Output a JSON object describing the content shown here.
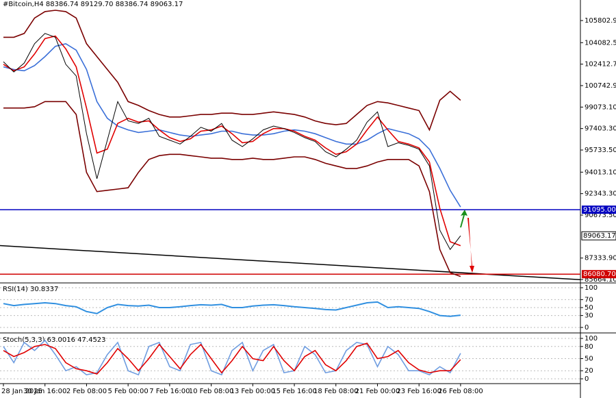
{
  "header": "#Bitcoin,H4  88386.74 89129.70 88386.74 89063.17",
  "chart_data": [
    {
      "type": "line",
      "categories": [
        "28 Jan 2025",
        null,
        null,
        null,
        "30 Jan 16:00",
        null,
        null,
        null,
        "2 Feb 08:00",
        null,
        null,
        null,
        "5 Feb 00:00",
        null,
        null,
        null,
        "7 Feb 16:00",
        null,
        null,
        null,
        "10 Feb 08:00",
        null,
        null,
        null,
        "13 Feb 00:00",
        null,
        null,
        null,
        "15 Feb 16:00",
        null,
        null,
        null,
        "18 Feb 08:00",
        null,
        null,
        null,
        "21 Feb 00:00",
        null,
        null,
        null,
        "23 Feb 16:00",
        null,
        null,
        null,
        "26 Feb 08:00"
      ],
      "series": [
        {
          "color": "#7a0000",
          "values": [
            104500,
            104500,
            104800,
            106000,
            106500,
            106600,
            106500,
            106000,
            104000,
            103000,
            102000,
            101000,
            99500,
            99200,
            98800,
            98500,
            98300,
            98300,
            98400,
            98500,
            98500,
            98600,
            98600,
            98500,
            98500,
            98600,
            98700,
            98600,
            98500,
            98300,
            98000,
            97800,
            97700,
            97800,
            98500,
            99200,
            99500,
            99400,
            99200,
            99000,
            98800,
            97300,
            99600,
            100300,
            99600
          ]
        },
        {
          "color": "#7a0000",
          "values": [
            99000,
            99000,
            99000,
            99100,
            99500,
            99500,
            99500,
            98500,
            94000,
            92500,
            92600,
            92700,
            92800,
            94000,
            95000,
            95300,
            95400,
            95400,
            95300,
            95200,
            95100,
            95100,
            95000,
            95000,
            95100,
            95000,
            95000,
            95100,
            95200,
            95200,
            95000,
            94700,
            94500,
            94300,
            94300,
            94500,
            94800,
            95000,
            95000,
            95000,
            94500,
            92500,
            88000,
            86200,
            85900
          ]
        },
        {
          "color": "#3a6fd8",
          "values": [
            102200,
            102000,
            101900,
            102300,
            103000,
            103800,
            104000,
            103500,
            102000,
            99500,
            98200,
            97600,
            97300,
            97100,
            97200,
            97300,
            97100,
            96900,
            96800,
            96900,
            97000,
            97200,
            97200,
            97000,
            96900,
            96900,
            97000,
            97200,
            97300,
            97200,
            97000,
            96700,
            96400,
            96200,
            96200,
            96500,
            97000,
            97400,
            97200,
            97000,
            96600,
            95800,
            94300,
            92600,
            91300
          ]
        },
        {
          "color": "#e00000",
          "values": [
            102400,
            101900,
            102200,
            103200,
            104400,
            104600,
            103600,
            102200,
            99000,
            95500,
            95800,
            97800,
            98200,
            97900,
            98000,
            97300,
            96700,
            96400,
            96600,
            97200,
            97300,
            97600,
            97000,
            96300,
            96400,
            97000,
            97400,
            97400,
            97200,
            96800,
            96500,
            95900,
            95400,
            95600,
            96200,
            97300,
            98300,
            97300,
            96400,
            96200,
            95900,
            94800,
            91200,
            88600,
            88300
          ]
        },
        {
          "color": "#000000",
          "values": [
            102600,
            101800,
            102500,
            104000,
            104800,
            104500,
            102400,
            101500,
            97000,
            93500,
            96500,
            99500,
            98000,
            97800,
            98200,
            96800,
            96500,
            96200,
            96800,
            97500,
            97200,
            97800,
            96500,
            96000,
            96600,
            97300,
            97600,
            97400,
            97100,
            96700,
            96400,
            95600,
            95200,
            95800,
            96500,
            97900,
            98700,
            96000,
            96300,
            96100,
            95800,
            94500,
            89500,
            88000,
            89063.17
          ]
        }
      ],
      "ylim": [
        85400,
        107400
      ],
      "yticks": [
        {
          "value": 105802.9,
          "label": "105802.90"
        },
        {
          "value": 104082.5,
          "label": "104082.50"
        },
        {
          "value": 102412.7,
          "label": "102412.70"
        },
        {
          "value": 100742.9,
          "label": "100742.90"
        },
        {
          "value": 99073.1,
          "label": "99073.10"
        },
        {
          "value": 97403.3,
          "label": "97403.30"
        },
        {
          "value": 95733.5,
          "label": "95733.50"
        },
        {
          "value": 94013.1,
          "label": "94013.10"
        },
        {
          "value": 92343.3,
          "label": "92343.30"
        },
        {
          "value": 90673.5,
          "label": "90673.50"
        },
        {
          "value": 87333.9,
          "label": "87333.90"
        },
        {
          "value": 85664.1,
          "label": "85664.10"
        }
      ],
      "levels": [
        {
          "value": 91095,
          "label": "91095.00",
          "color": "#0000c0"
        },
        {
          "value": 86080.7,
          "label": "86080.70",
          "color": "#d00000"
        }
      ],
      "last": {
        "value": 89063.17,
        "label": "89063.17"
      },
      "trendline": {
        "values": [
          88300,
          85650
        ],
        "color": "#000000"
      },
      "grid": false
    },
    {
      "type": "line",
      "title": "RSI(14) 30.8337",
      "color": "#2f8fe0",
      "values": [
        60,
        55,
        58,
        60,
        62,
        60,
        55,
        52,
        40,
        35,
        50,
        58,
        55,
        54,
        56,
        50,
        50,
        52,
        55,
        57,
        56,
        58,
        50,
        50,
        54,
        56,
        57,
        55,
        52,
        50,
        48,
        45,
        44,
        50,
        56,
        62,
        64,
        50,
        52,
        50,
        48,
        40,
        30,
        28,
        30.8337
      ],
      "ylim": [
        0,
        100
      ],
      "yticks": [
        0,
        30,
        50,
        70,
        100
      ],
      "grid": true
    },
    {
      "type": "line",
      "title": "Stoch(5,3,3) 63.0016 47.4523",
      "series": [
        {
          "color": "#6f9de0",
          "values": [
            80,
            40,
            90,
            70,
            95,
            60,
            20,
            30,
            10,
            15,
            60,
            90,
            20,
            10,
            80,
            90,
            30,
            20,
            85,
            90,
            20,
            10,
            70,
            90,
            20,
            70,
            85,
            15,
            20,
            80,
            60,
            15,
            20,
            70,
            90,
            85,
            30,
            80,
            60,
            20,
            20,
            10,
            30,
            15,
            63.0016
          ]
        },
        {
          "color": "#e00000",
          "values": [
            70,
            55,
            65,
            80,
            85,
            75,
            40,
            25,
            20,
            12,
            40,
            75,
            50,
            20,
            50,
            85,
            55,
            25,
            60,
            85,
            50,
            15,
            45,
            80,
            50,
            45,
            80,
            45,
            20,
            55,
            70,
            35,
            20,
            45,
            80,
            88,
            50,
            55,
            70,
            40,
            22,
            15,
            20,
            20,
            47.4523
          ]
        }
      ],
      "ylim": [
        0,
        100
      ],
      "yticks": [
        0,
        20,
        50,
        80,
        100
      ],
      "grid": true
    }
  ]
}
